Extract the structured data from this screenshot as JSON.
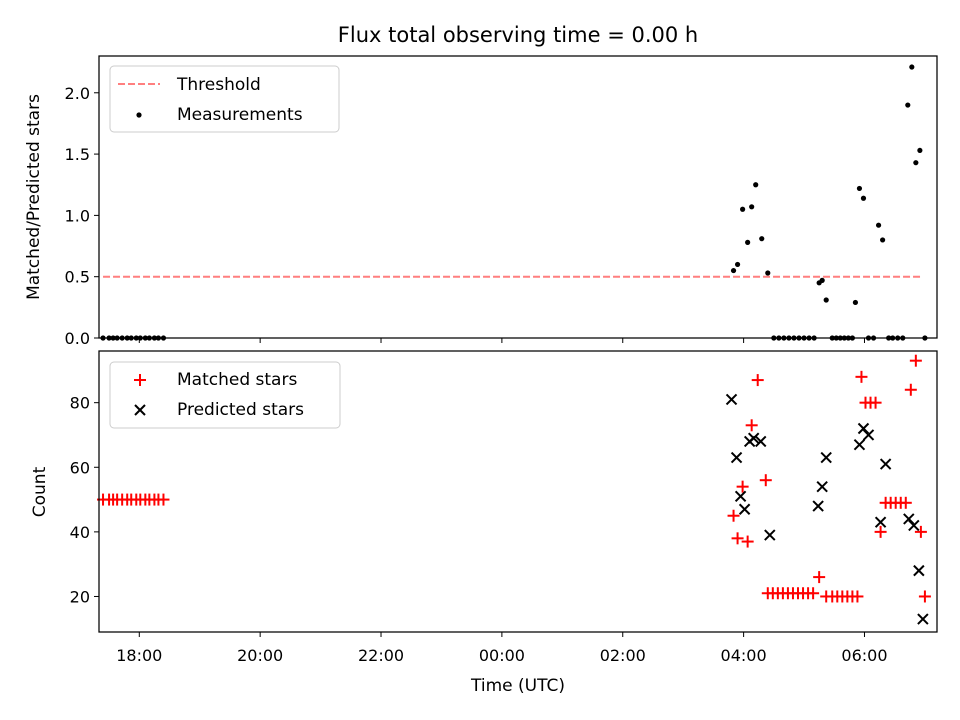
{
  "chart_data": {
    "type": "scatter",
    "title": "Flux total observing time = 0.00 h",
    "xlabel": "Time (UTC)",
    "xlim": [
      "17:20",
      "07:12"
    ],
    "xticks": [
      "18:00",
      "20:00",
      "22:00",
      "00:00",
      "02:00",
      "04:00",
      "06:00"
    ],
    "panels": [
      {
        "ylabel": "Matched/Predicted stars",
        "ylim": [
          0,
          2.3
        ],
        "yticks": [
          "0.0",
          "0.5",
          "1.0",
          "1.5",
          "2.0"
        ],
        "legend_position": "top-left",
        "series": [
          {
            "name": "Threshold",
            "kind": "line",
            "style": "dashed",
            "color": "#ff7f7f",
            "x": [
              "17:24",
              "06:56"
            ],
            "y": [
              0.5,
              0.5
            ]
          },
          {
            "name": "Measurements",
            "kind": "scatter",
            "marker": "dot",
            "color": "#000000",
            "x": [
              "17:24",
              "17:30",
              "17:34",
              "17:38",
              "17:43",
              "17:48",
              "17:52",
              "17:57",
              "18:01",
              "18:06",
              "18:10",
              "18:15",
              "18:19",
              "18:24",
              "03:50",
              "03:54",
              "03:59",
              "04:04",
              "04:08",
              "04:12",
              "04:18",
              "04:24",
              "04:30",
              "04:35",
              "04:40",
              "04:45",
              "04:50",
              "04:55",
              "05:00",
              "05:05",
              "05:10",
              "05:15",
              "05:18",
              "05:22",
              "05:28",
              "05:32",
              "05:36",
              "05:40",
              "05:44",
              "05:48",
              "05:51",
              "05:55",
              "05:59",
              "06:04",
              "06:09",
              "06:14",
              "06:18",
              "06:24",
              "06:28",
              "06:33",
              "06:38",
              "06:43",
              "06:47",
              "06:51",
              "06:55",
              "07:00"
            ],
            "y": [
              0,
              0,
              0,
              0,
              0,
              0,
              0,
              0,
              0,
              0,
              0,
              0,
              0,
              0,
              0.55,
              0.6,
              1.05,
              0.78,
              1.07,
              1.25,
              0.81,
              0.53,
              0,
              0,
              0,
              0,
              0,
              0,
              0,
              0,
              0,
              0.45,
              0.47,
              0.31,
              0,
              0,
              0,
              0,
              0,
              0,
              0.29,
              1.22,
              1.14,
              0,
              0,
              0.92,
              0.8,
              0,
              0,
              0,
              0,
              1.9,
              2.21,
              1.43,
              1.53,
              0
            ]
          }
        ]
      },
      {
        "ylabel": "Count",
        "ylim": [
          9,
          96
        ],
        "yticks": [
          "20",
          "40",
          "60",
          "80"
        ],
        "legend_position": "top-left",
        "series": [
          {
            "name": "Matched stars",
            "kind": "scatter",
            "marker": "plus",
            "color": "#ff0000",
            "x": [
              "17:24",
              "17:30",
              "17:34",
              "17:38",
              "17:43",
              "17:48",
              "17:52",
              "17:57",
              "18:01",
              "18:06",
              "18:10",
              "18:15",
              "18:19",
              "18:24",
              "03:50",
              "03:54",
              "03:59",
              "04:04",
              "04:08",
              "04:14",
              "04:22",
              "04:24",
              "04:29",
              "04:34",
              "04:39",
              "04:44",
              "04:49",
              "04:54",
              "04:59",
              "05:04",
              "05:09",
              "05:15",
              "05:22",
              "05:28",
              "05:33",
              "05:38",
              "05:43",
              "05:48",
              "05:53",
              "05:57",
              "06:01",
              "06:06",
              "06:11",
              "06:16",
              "06:21",
              "06:26",
              "06:31",
              "06:36",
              "06:41",
              "06:46",
              "06:51",
              "06:56",
              "07:00"
            ],
            "y": [
              50,
              50,
              50,
              50,
              50,
              50,
              50,
              50,
              50,
              50,
              50,
              50,
              50,
              50,
              45,
              38,
              54,
              37,
              73,
              87,
              56,
              21,
              21,
              21,
              21,
              21,
              21,
              21,
              21,
              21,
              21,
              26,
              20,
              20,
              20,
              20,
              20,
              20,
              20,
              88,
              80,
              80,
              80,
              40,
              49,
              49,
              49,
              49,
              49,
              84,
              93,
              40,
              20
            ]
          },
          {
            "name": "Predicted stars",
            "kind": "scatter",
            "marker": "x",
            "color": "#000000",
            "x": [
              "03:48",
              "03:53",
              "03:57",
              "04:01",
              "04:06",
              "04:10",
              "04:17",
              "04:26",
              "05:14",
              "05:18",
              "05:22",
              "05:55",
              "05:59",
              "06:04",
              "06:16",
              "06:21",
              "06:44",
              "06:49",
              "06:54",
              "06:58"
            ],
            "y": [
              81,
              63,
              51,
              47,
              68,
              69,
              68,
              39,
              48,
              54,
              63,
              67,
              72,
              70,
              43,
              61,
              44,
              42,
              28,
              13
            ]
          }
        ]
      }
    ]
  }
}
